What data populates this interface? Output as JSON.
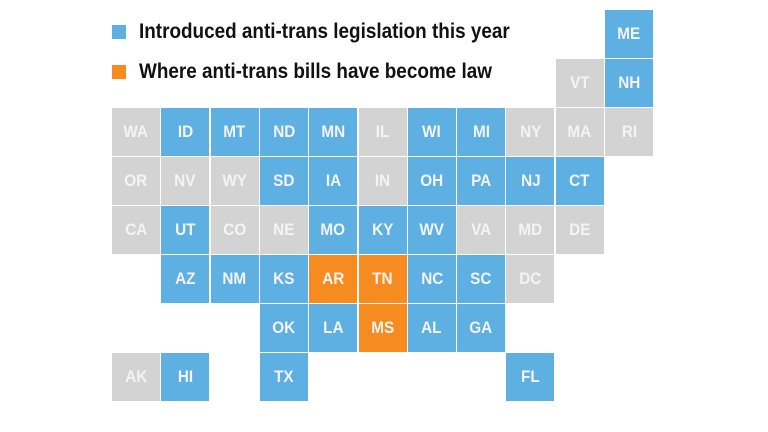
{
  "legend": [
    {
      "label": "Introduced anti-trans legislation this year",
      "status": "introduced"
    },
    {
      "label": "Where anti-trans bills have become law",
      "status": "law"
    }
  ],
  "colors": {
    "introduced": "#5eafe2",
    "law": "#f68b1f",
    "none": "#d3d3d3"
  },
  "states": [
    {
      "code": "ME",
      "status": "introduced"
    },
    {
      "code": "VT",
      "status": "none"
    },
    {
      "code": "NH",
      "status": "introduced"
    },
    {
      "code": "WA",
      "status": "none"
    },
    {
      "code": "ID",
      "status": "introduced"
    },
    {
      "code": "MT",
      "status": "introduced"
    },
    {
      "code": "ND",
      "status": "introduced"
    },
    {
      "code": "MN",
      "status": "introduced"
    },
    {
      "code": "IL",
      "status": "none"
    },
    {
      "code": "WI",
      "status": "introduced"
    },
    {
      "code": "MI",
      "status": "introduced"
    },
    {
      "code": "NY",
      "status": "none"
    },
    {
      "code": "MA",
      "status": "none"
    },
    {
      "code": "RI",
      "status": "none"
    },
    {
      "code": "OR",
      "status": "none"
    },
    {
      "code": "NV",
      "status": "none"
    },
    {
      "code": "WY",
      "status": "none"
    },
    {
      "code": "SD",
      "status": "introduced"
    },
    {
      "code": "IA",
      "status": "introduced"
    },
    {
      "code": "IN",
      "status": "none"
    },
    {
      "code": "OH",
      "status": "introduced"
    },
    {
      "code": "PA",
      "status": "introduced"
    },
    {
      "code": "NJ",
      "status": "introduced"
    },
    {
      "code": "CT",
      "status": "introduced"
    },
    {
      "code": "CA",
      "status": "none"
    },
    {
      "code": "UT",
      "status": "introduced"
    },
    {
      "code": "CO",
      "status": "none"
    },
    {
      "code": "NE",
      "status": "none"
    },
    {
      "code": "MO",
      "status": "introduced"
    },
    {
      "code": "KY",
      "status": "introduced"
    },
    {
      "code": "WV",
      "status": "introduced"
    },
    {
      "code": "VA",
      "status": "none"
    },
    {
      "code": "MD",
      "status": "none"
    },
    {
      "code": "DE",
      "status": "none"
    },
    {
      "code": "AZ",
      "status": "introduced"
    },
    {
      "code": "NM",
      "status": "introduced"
    },
    {
      "code": "KS",
      "status": "introduced"
    },
    {
      "code": "AR",
      "status": "law"
    },
    {
      "code": "TN",
      "status": "law"
    },
    {
      "code": "NC",
      "status": "introduced"
    },
    {
      "code": "SC",
      "status": "introduced"
    },
    {
      "code": "DC",
      "status": "none"
    },
    {
      "code": "OK",
      "status": "introduced"
    },
    {
      "code": "LA",
      "status": "introduced"
    },
    {
      "code": "MS",
      "status": "law"
    },
    {
      "code": "AL",
      "status": "introduced"
    },
    {
      "code": "GA",
      "status": "introduced"
    },
    {
      "code": "AK",
      "status": "none"
    },
    {
      "code": "HI",
      "status": "introduced"
    },
    {
      "code": "TX",
      "status": "introduced"
    },
    {
      "code": "FL",
      "status": "introduced"
    }
  ]
}
